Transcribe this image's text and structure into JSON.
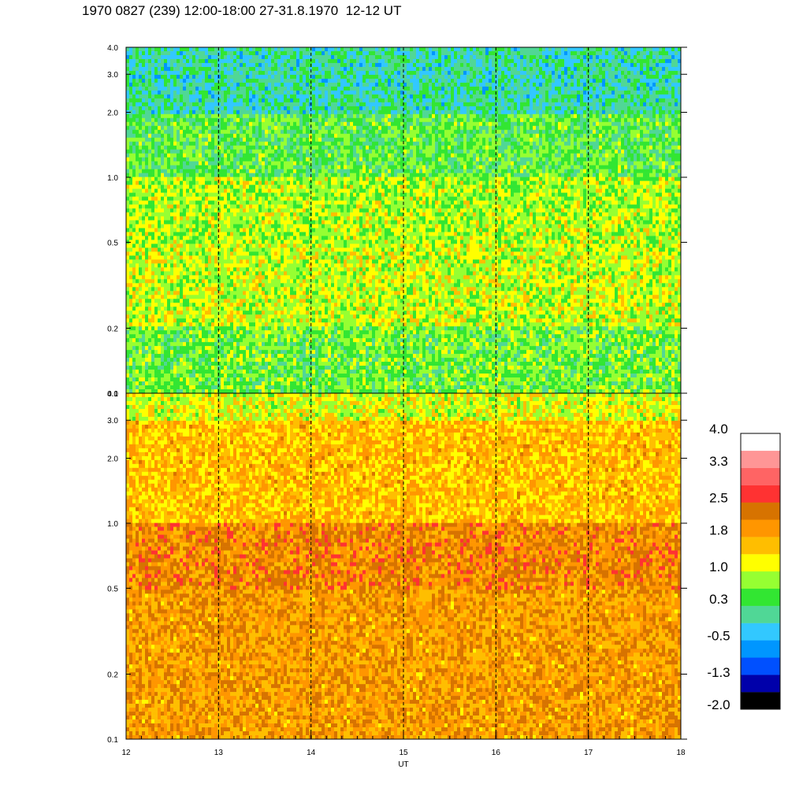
{
  "title": "1970 0827 (239) 12:00-18:00 27-31.8.1970  12-12 UT",
  "chart_data": [
    {
      "type": "heatmap",
      "panel": "top",
      "xlabel": "",
      "ylabel": "",
      "xlim": [
        12,
        18
      ],
      "ylim": [
        0.1,
        4.0
      ],
      "y_scale": "log",
      "y_ticks": [
        {
          "value": 0.1,
          "label": "0.1"
        },
        {
          "value": 0.2,
          "label": "0.2"
        },
        {
          "value": 0.5,
          "label": "0.5"
        },
        {
          "value": 1.0,
          "label": "1.0"
        },
        {
          "value": 2.0,
          "label": "2.0"
        },
        {
          "value": 3.0,
          "label": "3.0"
        },
        {
          "value": 4.0,
          "label": "4.0"
        }
      ],
      "dashed_lines_x": [
        13,
        14,
        15,
        16,
        17
      ],
      "dominant_levels_by_frequency": [
        {
          "freq_from": 0.1,
          "freq_to": 0.2,
          "level": 0.6
        },
        {
          "freq_from": 0.2,
          "freq_to": 0.5,
          "level": 1.0
        },
        {
          "freq_from": 0.5,
          "freq_to": 1.0,
          "level": 0.9
        },
        {
          "freq_from": 1.0,
          "freq_to": 2.0,
          "level": 0.5
        },
        {
          "freq_from": 2.0,
          "freq_to": 4.0,
          "level": 0.0
        }
      ]
    },
    {
      "type": "heatmap",
      "panel": "bottom",
      "xlabel": "UT",
      "ylabel": "",
      "xlim": [
        12,
        18
      ],
      "ylim": [
        0.1,
        4.0
      ],
      "y_scale": "log",
      "x_ticks": [
        {
          "value": 12,
          "label": "12"
        },
        {
          "value": 13,
          "label": "13"
        },
        {
          "value": 14,
          "label": "14"
        },
        {
          "value": 15,
          "label": "15"
        },
        {
          "value": 16,
          "label": "16"
        },
        {
          "value": 17,
          "label": "17"
        },
        {
          "value": 18,
          "label": "18"
        }
      ],
      "y_ticks": [
        {
          "value": 0.1,
          "label": "0.1"
        },
        {
          "value": 0.2,
          "label": "0.2"
        },
        {
          "value": 0.5,
          "label": "0.5"
        },
        {
          "value": 1.0,
          "label": "1.0"
        },
        {
          "value": 2.0,
          "label": "2.0"
        },
        {
          "value": 3.0,
          "label": "3.0"
        },
        {
          "value": 4.0,
          "label": "4.0"
        }
      ],
      "dashed_lines_x": [
        13,
        14,
        15,
        16,
        17
      ],
      "dominant_levels_by_frequency": [
        {
          "freq_from": 0.1,
          "freq_to": 0.5,
          "level": 1.9
        },
        {
          "freq_from": 0.5,
          "freq_to": 1.0,
          "level": 2.1
        },
        {
          "freq_from": 1.0,
          "freq_to": 3.0,
          "level": 1.6
        },
        {
          "freq_from": 3.0,
          "freq_to": 4.0,
          "level": 1.1
        }
      ]
    }
  ],
  "colorbar": {
    "colors": [
      "#000000",
      "#0000aa",
      "#0050ff",
      "#0096ff",
      "#32c8ff",
      "#50d796",
      "#32e632",
      "#96ff32",
      "#ffff00",
      "#ffbe00",
      "#ff9600",
      "#d77300",
      "#ff3232",
      "#ff6464",
      "#ff9696",
      "#ffffff"
    ],
    "labels": [
      "-2.0",
      "-1.3",
      "-0.5",
      "0.3",
      "1.0",
      "1.8",
      "2.5",
      "3.3",
      "4.0"
    ],
    "label_values": [
      -2.0,
      -1.3,
      -0.5,
      0.3,
      1.0,
      1.8,
      2.5,
      3.3,
      4.0
    ]
  }
}
